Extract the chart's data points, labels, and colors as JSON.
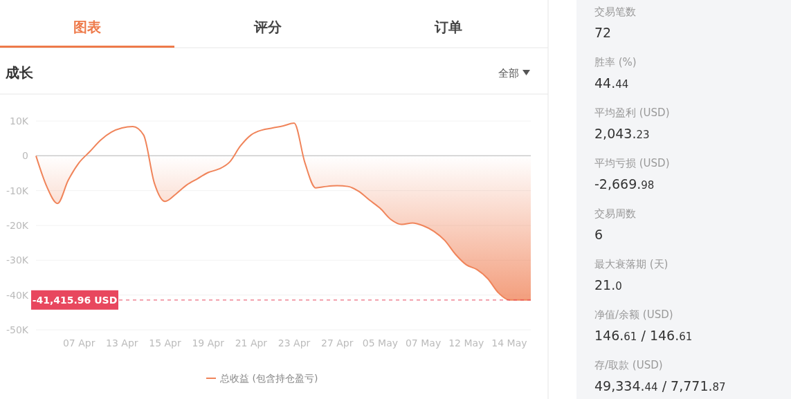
{
  "chart_data": [
    {
      "type": "area",
      "title": "成长",
      "annotations": [
        "图表",
        "评分",
        "订单",
        "全部"
      ],
      "categories": [
        null,
        null,
        null,
        null,
        "07 Apr",
        null,
        null,
        null,
        "13 Apr",
        null,
        null,
        null,
        "15 Apr",
        null,
        null,
        null,
        "19 Apr",
        null,
        null,
        null,
        "21 Apr",
        null,
        null,
        null,
        "23 Apr",
        null,
        null,
        null,
        "27 Apr",
        null,
        null,
        null,
        "05 May",
        null,
        null,
        null,
        "07 May",
        null,
        null,
        null,
        "12 May",
        null,
        null,
        null,
        "14 May",
        null,
        null
      ],
      "series": [
        {
          "name": "总收益 (包含持仓盈亏)",
          "color": "#f0845a",
          "values": [
            0,
            -8800,
            -13700,
            -7000,
            -2000,
            1200,
            4500,
            6800,
            8000,
            8400,
            6000,
            -7800,
            -13100,
            -11000,
            -8400,
            -6600,
            -4800,
            -3800,
            -1800,
            2800,
            6000,
            7400,
            8000,
            8600,
            9400,
            -2000,
            -9200,
            -8800,
            -8600,
            -8800,
            -10200,
            -12700,
            -15100,
            -18300,
            -19700,
            -19300,
            -20100,
            -21700,
            -24300,
            -28300,
            -31300,
            -32700,
            -35300,
            -39400,
            -41400,
            -41400,
            -41400
          ]
        }
      ],
      "ylim": [
        -50000,
        10000
      ],
      "yticks": [
        {
          "value": -50000,
          "label": "-50K"
        },
        {
          "value": -40000,
          "label": "-40K"
        },
        {
          "value": -30000,
          "label": "-30K"
        },
        {
          "value": -20000,
          "label": "-20K"
        },
        {
          "value": -10000,
          "label": "-10K"
        },
        0,
        {
          "value": 10000,
          "label": "10K"
        }
      ],
      "grid": "y",
      "legend": "bottom",
      "ref_lines": [
        {
          "axis": "y",
          "value": -41415.96,
          "label": "-41,415.96 USD",
          "color": "#e8475e",
          "line_style": "dashed"
        }
      ]
    },
    {
      "type": "other",
      "annotations": [
        "交易笔数",
        "72",
        "胜率 (%)",
        "44.44",
        "平均盈利 (USD)",
        "2,043.23",
        "平均亏损 (USD)",
        "-2,669.98",
        "交易周数",
        "6",
        "最大衰落期 (天)",
        "21.0",
        "净值/余额 (USD)",
        "146.61 / 146.61",
        "存/取款 (USD)",
        "49,334.44 / 7,771.87"
      ]
    }
  ]
}
